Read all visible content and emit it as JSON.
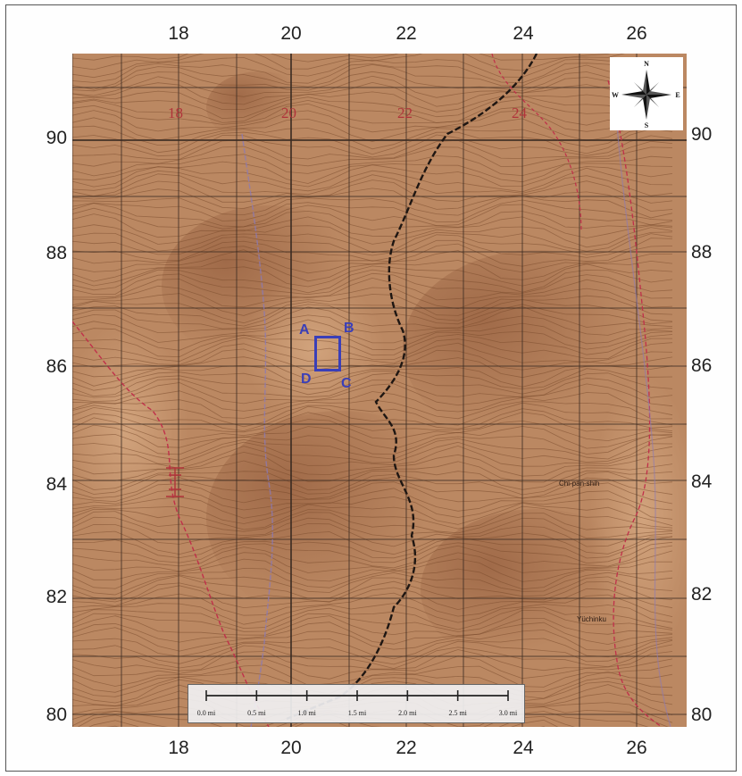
{
  "axes": {
    "x_ticks": [
      "18",
      "20",
      "22",
      "24",
      "26"
    ],
    "y_ticks": [
      "90",
      "88",
      "86",
      "84",
      "82",
      "80"
    ]
  },
  "map_labels": {
    "red_grid_labels": [
      "18",
      "20",
      "22",
      "24"
    ],
    "place_labels": [
      "Chi-pan-shih",
      "Yüchinku"
    ]
  },
  "study_area": {
    "corners": [
      "A",
      "B",
      "C",
      "D"
    ],
    "color": "#3a3fb8"
  },
  "compass": {
    "north": "N",
    "south": "S",
    "east": "E",
    "west": "W"
  },
  "scale_bar": {
    "labels": [
      "0.0 mi",
      "0.5 mi",
      "1.0 mi",
      "1.5 mi",
      "2.0 mi",
      "2.5 mi",
      "3.0 mi"
    ]
  },
  "colors": {
    "terrain": "#b98560",
    "contour": "#7a4a2c",
    "grid": "#3a2a22",
    "road": "#c0304a",
    "river": "#8a7ab8"
  }
}
